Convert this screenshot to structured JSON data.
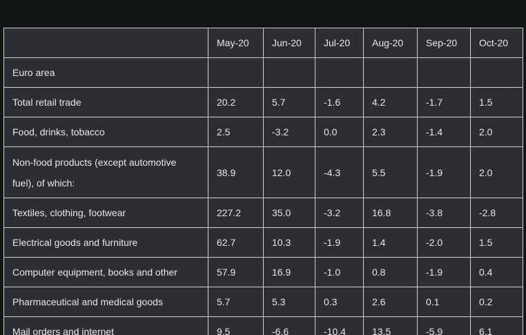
{
  "table": {
    "headers": [
      "",
      "May-20",
      "Jun-20",
      "Jul-20",
      "Aug-20",
      "Sep-20",
      "Oct-20"
    ],
    "rows": [
      {
        "label": "Euro area",
        "values": [
          "",
          "",
          "",
          "",
          "",
          ""
        ]
      },
      {
        "label": "Total retail trade",
        "values": [
          "20.2",
          "5.7",
          "-1.6",
          "4.2",
          "-1.7",
          "1.5"
        ]
      },
      {
        "label": "Food, drinks, tobacco",
        "values": [
          "2.5",
          "-3.2",
          "0.0",
          "2.3",
          "-1.4",
          "2.0"
        ]
      },
      {
        "label": "Non-food products (except automotive fuel), of which:",
        "values": [
          "38.9",
          "12.0",
          "-4.3",
          "5.5",
          "-1.9",
          "2.0"
        ]
      },
      {
        "label": "Textiles, clothing, footwear",
        "values": [
          "227.2",
          "35.0",
          "-3.2",
          "16.8",
          "-3.8",
          "-2.8"
        ]
      },
      {
        "label": "Electrical goods and furniture",
        "values": [
          "62.7",
          "10.3",
          "-1.9",
          "1.4",
          "-2.0",
          "1.5"
        ]
      },
      {
        "label": "Computer equipment, books and other",
        "values": [
          "57.9",
          "16.9",
          "-1.0",
          "0.8",
          "-1.9",
          "0.4"
        ]
      },
      {
        "label": "Pharmaceutical and medical goods",
        "values": [
          "5.7",
          "5.3",
          "0.3",
          "2.6",
          "0.1",
          "0.2"
        ]
      },
      {
        "label": "Mail orders and internet",
        "values": [
          "9.5",
          "-6.6",
          "-10.4",
          "13.5",
          "-5.9",
          "6.1"
        ]
      }
    ]
  }
}
